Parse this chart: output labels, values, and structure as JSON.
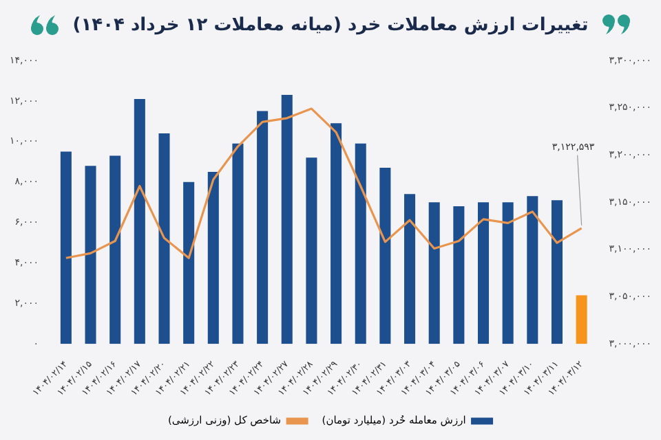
{
  "chart_data": {
    "type": "bar",
    "title": "تغییرات ارزش معاملات خرد (میانه معاملات ۱۲ خرداد ۱۴۰۴)",
    "categories": [
      "۱۴۰۴/۰۲/۱۴",
      "۱۴۰۴/۰۲/۱۵",
      "۱۴۰۴/۰۲/۱۶",
      "۱۴۰۴/۰۲/۱۷",
      "۱۴۰۴/۰۲/۲۰",
      "۱۴۰۴/۰۲/۲۱",
      "۱۴۰۴/۰۲/۲۲",
      "۱۴۰۴/۰۲/۲۳",
      "۱۴۰۴/۰۲/۲۴",
      "۱۴۰۴/۰۲/۲۷",
      "۱۴۰۴/۰۲/۲۸",
      "۱۴۰۴/۰۲/۲۹",
      "۱۴۰۴/۰۲/۳۰",
      "۱۴۰۴/۰۲/۳۱",
      "۱۴۰۴/۰۳/۰۳",
      "۱۴۰۴/۰۳/۰۴",
      "۱۴۰۴/۰۳/۰۵",
      "۱۴۰۴/۰۳/۰۶",
      "۱۴۰۴/۰۳/۰۷",
      "۱۴۰۴/۰۳/۱۰",
      "۱۴۰۴/۰۳/۱۱",
      "۱۴۰۴/۰۳/۱۲"
    ],
    "series": [
      {
        "name": "ارزش معامله خُرد (میلیارد تومان)",
        "color": "#1d4f8f",
        "colors": [
          "#1d4f8f",
          "#1d4f8f",
          "#1d4f8f",
          "#1d4f8f",
          "#1d4f8f",
          "#1d4f8f",
          "#1d4f8f",
          "#1d4f8f",
          "#1d4f8f",
          "#1d4f8f",
          "#1d4f8f",
          "#1d4f8f",
          "#1d4f8f",
          "#1d4f8f",
          "#1d4f8f",
          "#1d4f8f",
          "#1d4f8f",
          "#1d4f8f",
          "#1d4f8f",
          "#1d4f8f",
          "#1d4f8f",
          "#f7941d"
        ],
        "values": [
          9500,
          8800,
          9300,
          12100,
          10400,
          8000,
          8500,
          9900,
          11500,
          12300,
          9200,
          10900,
          9900,
          8700,
          7400,
          7000,
          6800,
          7000,
          7000,
          7300,
          7100,
          2400
        ]
      },
      {
        "name": "شاخص کل (وزنی ارزشی)",
        "type": "line",
        "axis": "y2",
        "color": "#e8954f",
        "values": [
          3091000,
          3096000,
          3109000,
          3167000,
          3112000,
          3091000,
          3174000,
          3209000,
          3235000,
          3239000,
          3249000,
          3224000,
          3167000,
          3108000,
          3131000,
          3101000,
          3109000,
          3132000,
          3128000,
          3140000,
          3107000,
          3122593
        ],
        "value_labels": [
          null,
          null,
          null,
          null,
          null,
          null,
          null,
          null,
          null,
          null,
          null,
          null,
          null,
          null,
          null,
          null,
          null,
          null,
          null,
          null,
          null,
          "۳,۱۲۲,۵۹۳"
        ]
      }
    ],
    "ylim": [
      0,
      14000
    ],
    "yticks": [
      {
        "value": 0,
        "label": "۰"
      },
      {
        "value": 2000,
        "label": "۲,۰۰۰"
      },
      {
        "value": 4000,
        "label": "۴,۰۰۰"
      },
      {
        "value": 6000,
        "label": "۶,۰۰۰"
      },
      {
        "value": 8000,
        "label": "۸,۰۰۰"
      },
      {
        "value": 10000,
        "label": "۱۰,۰۰۰"
      },
      {
        "value": 12000,
        "label": "۱۲,۰۰۰"
      },
      {
        "value": 14000,
        "label": "۱۴,۰۰۰"
      }
    ],
    "y2lim": [
      3000000,
      3300000
    ],
    "y2ticks": [
      {
        "value": 3000000,
        "label": "۳,۰۰۰,۰۰۰"
      },
      {
        "value": 3050000,
        "label": "۳,۰۵۰,۰۰۰"
      },
      {
        "value": 3100000,
        "label": "۳,۱۰۰,۰۰۰"
      },
      {
        "value": 3150000,
        "label": "۳,۱۵۰,۰۰۰"
      },
      {
        "value": 3200000,
        "label": "۳,۲۰۰,۰۰۰"
      },
      {
        "value": 3250000,
        "label": "۳,۲۵۰,۰۰۰"
      },
      {
        "value": 3300000,
        "label": "۳,۳۰۰,۰۰۰"
      }
    ],
    "grid": false,
    "legend": "bottom",
    "marker": "none",
    "line_style": "solid"
  }
}
